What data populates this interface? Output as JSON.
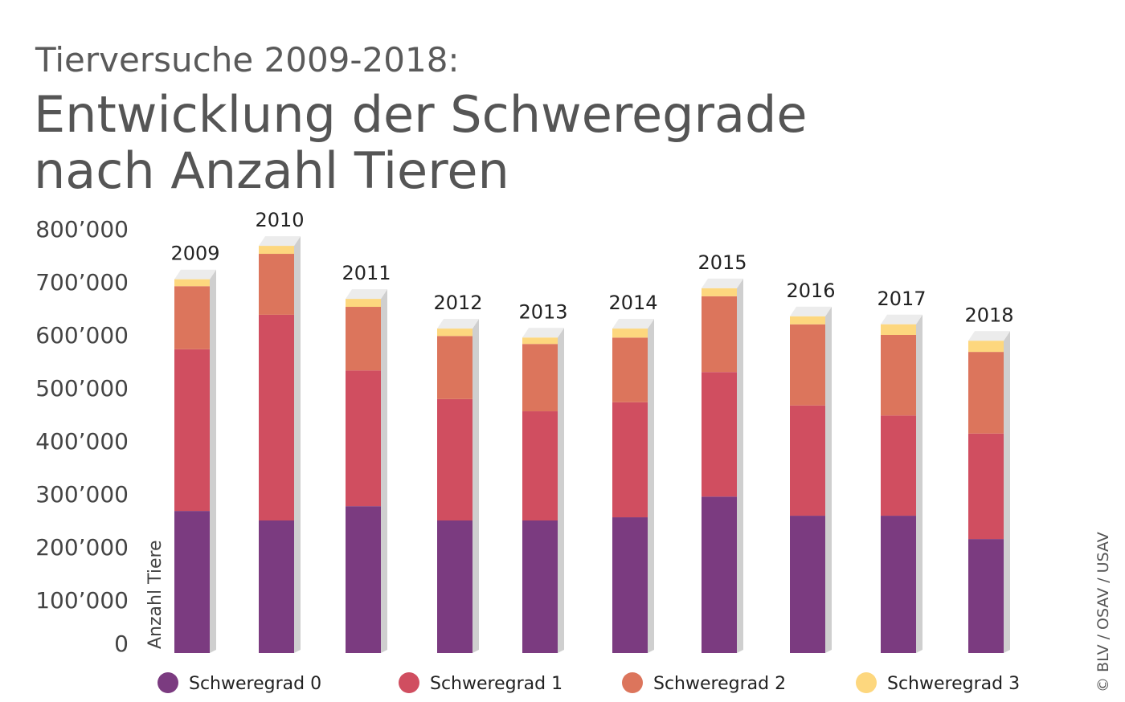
{
  "title": "Tierversuche 2009-2018:",
  "subtitle_line1": "Entwicklung der Schweregrade",
  "subtitle_line2": "nach Anzahl Tieren",
  "credit": "© BLV / OSAV / USAV",
  "chart_data": {
    "type": "bar",
    "stacked": true,
    "ylabel": "Anzahl Tiere",
    "ylim": [
      0,
      800000
    ],
    "yticks": [
      0,
      100000,
      200000,
      300000,
      400000,
      500000,
      600000,
      700000,
      800000
    ],
    "ytick_labels": [
      "0",
      "100’000",
      "200’000",
      "300’000",
      "400’000",
      "500’000",
      "600’000",
      "700’000",
      "800’000"
    ],
    "categories": [
      "2009",
      "2010",
      "2011",
      "2012",
      "2013",
      "2014",
      "2015",
      "2016",
      "2017",
      "2018"
    ],
    "legend_position": "bottom",
    "grid": false,
    "series": [
      {
        "name": "Schweregrad 0",
        "color": "#7b3b80",
        "values": [
          268000,
          250000,
          277000,
          250000,
          250000,
          256000,
          295000,
          259000,
          259000,
          215000
        ]
      },
      {
        "name": "Schweregrad 1",
        "color": "#d04e60",
        "values": [
          305000,
          388000,
          256000,
          229000,
          206000,
          217000,
          235000,
          208000,
          189000,
          199000
        ]
      },
      {
        "name": "Schweregrad 2",
        "color": "#dc755c",
        "values": [
          119000,
          115000,
          120000,
          119000,
          127000,
          122000,
          143000,
          153000,
          152000,
          154000
        ]
      },
      {
        "name": "Schweregrad 3",
        "color": "#fdd77e",
        "values": [
          13000,
          15000,
          15000,
          14000,
          12000,
          17000,
          15000,
          15000,
          20000,
          21000
        ]
      }
    ]
  }
}
